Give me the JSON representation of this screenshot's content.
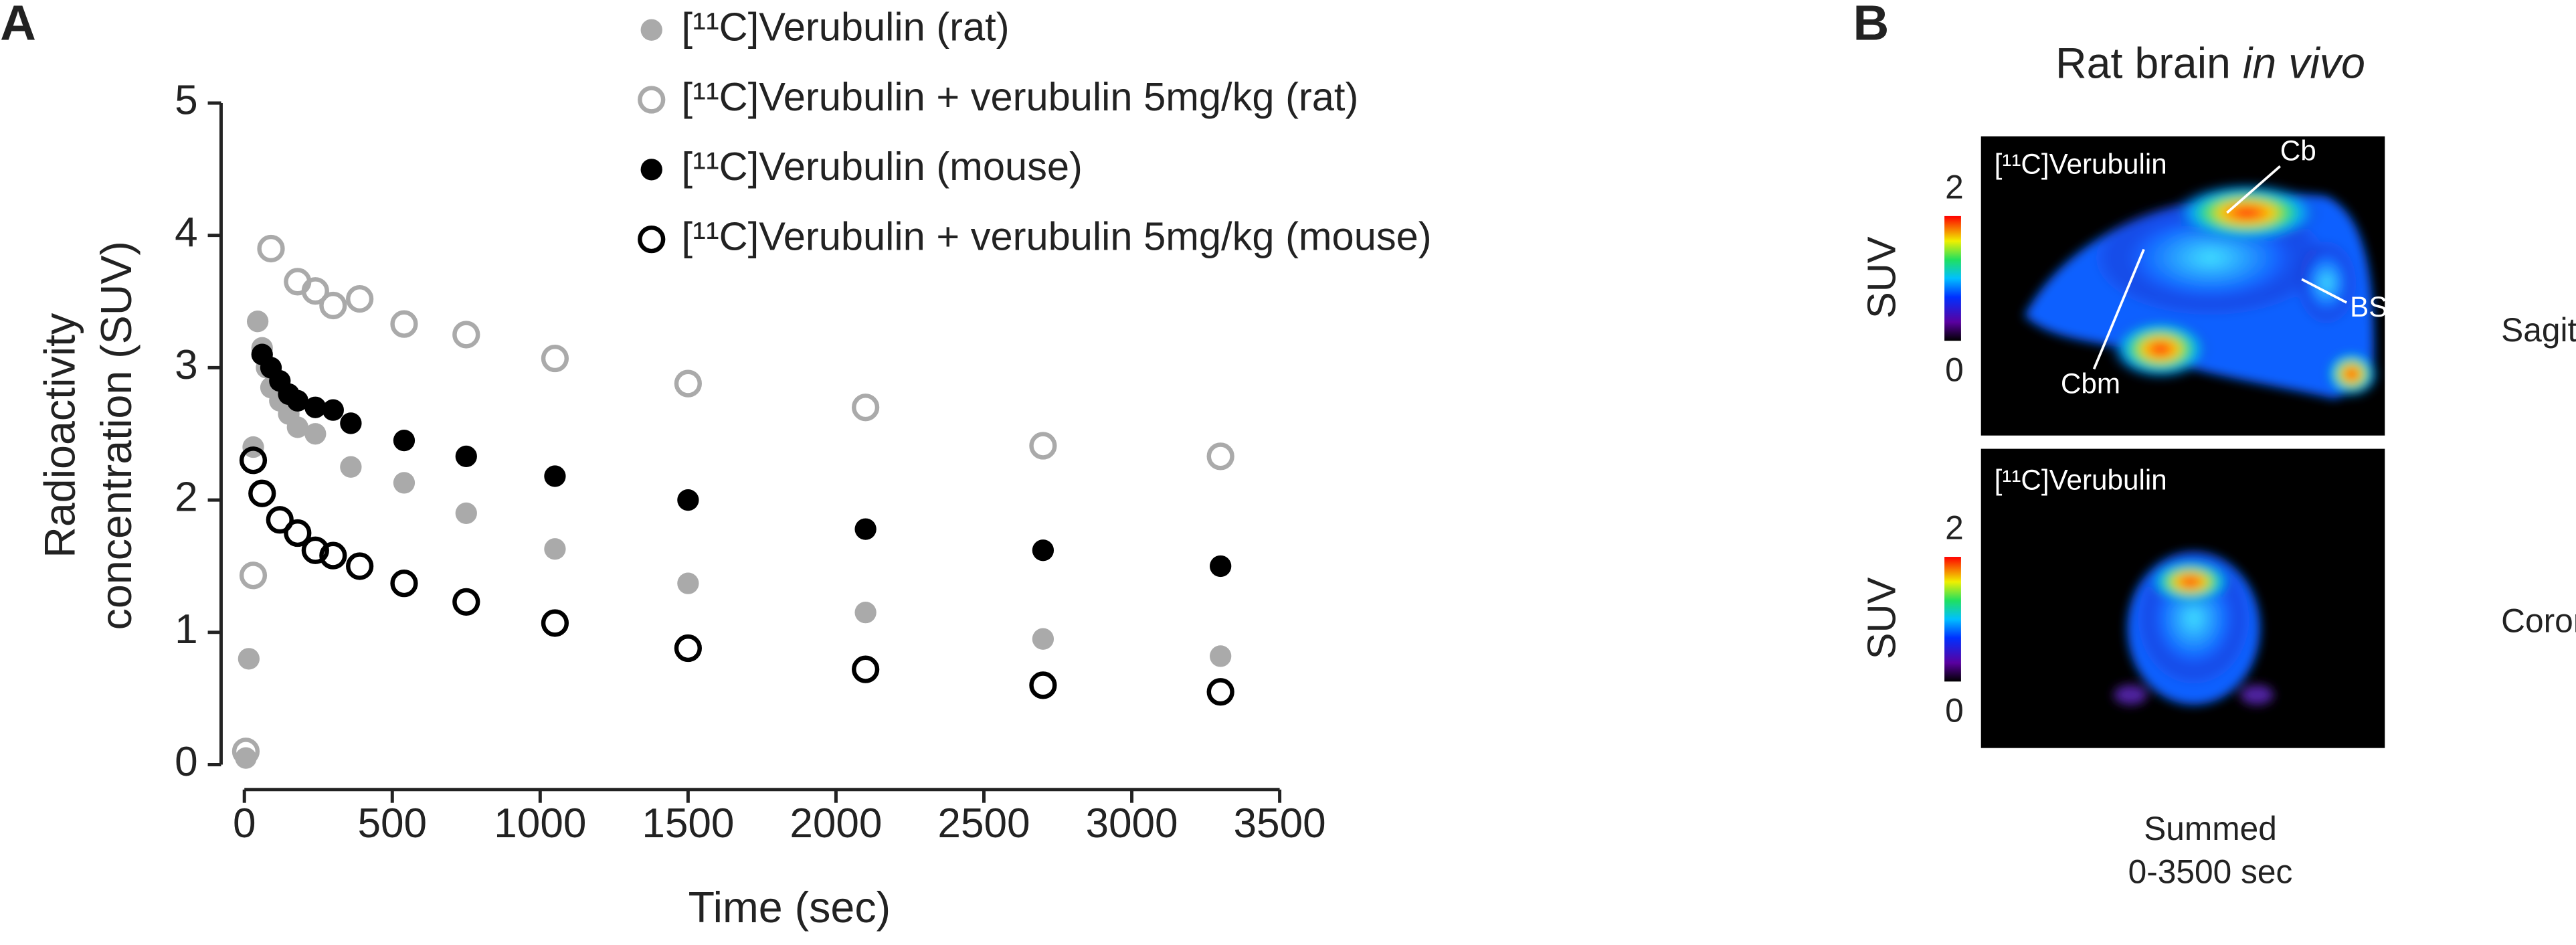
{
  "chart_data": {
    "type": "scatter",
    "panel_label": "A",
    "xlabel": "Time (sec)",
    "ylabel": [
      "Radioactivity",
      "concentration (SUV)"
    ],
    "xlim": [
      0,
      3500
    ],
    "xticks": [
      0,
      500,
      1000,
      1500,
      2000,
      2500,
      3000,
      3500
    ],
    "ylim": [
      0,
      5
    ],
    "yticks": [
      0,
      1,
      2,
      3,
      4,
      5
    ],
    "legend": "top-right",
    "series": [
      {
        "name": "[¹¹C]Verubulin (rat)",
        "color": "#aaaaaa",
        "marker": "filled",
        "x": [
          5,
          15,
          30,
          45,
          60,
          75,
          90,
          120,
          150,
          180,
          240,
          360,
          540,
          750,
          1050,
          1500,
          2100,
          2700,
          3300
        ],
        "values": [
          0.05,
          0.8,
          2.4,
          3.35,
          3.15,
          3.0,
          2.85,
          2.75,
          2.65,
          2.55,
          2.5,
          2.25,
          2.13,
          1.9,
          1.63,
          1.37,
          1.15,
          0.95,
          0.82
        ]
      },
      {
        "name": "[¹¹C]Verubulin + verubulin 5mg/kg (rat)",
        "color": "#aaaaaa",
        "marker": "open",
        "x": [
          5,
          30,
          90,
          180,
          240,
          300,
          390,
          540,
          750,
          1050,
          1500,
          2100,
          2700,
          3300
        ],
        "values": [
          0.1,
          1.43,
          3.9,
          3.65,
          3.58,
          3.47,
          3.52,
          3.33,
          3.25,
          3.07,
          2.88,
          2.7,
          2.41,
          2.33
        ]
      },
      {
        "name": "[¹¹C]Verubulin (mouse)",
        "color": "#000000",
        "marker": "filled",
        "x": [
          60,
          90,
          120,
          150,
          180,
          240,
          300,
          360,
          540,
          750,
          1050,
          1500,
          2100,
          2700,
          3300
        ],
        "values": [
          3.1,
          3.0,
          2.9,
          2.8,
          2.75,
          2.7,
          2.68,
          2.58,
          2.45,
          2.33,
          2.18,
          2.0,
          1.78,
          1.62,
          1.5
        ]
      },
      {
        "name": "[¹¹C]Verubulin + verubulin 5mg/kg (mouse)",
        "color": "#000000",
        "marker": "open",
        "x": [
          30,
          60,
          120,
          180,
          240,
          300,
          390,
          540,
          750,
          1050,
          1500,
          2100,
          2700,
          3300
        ],
        "values": [
          2.3,
          2.05,
          1.85,
          1.75,
          1.62,
          1.58,
          1.5,
          1.37,
          1.23,
          1.07,
          0.88,
          0.72,
          0.6,
          0.55
        ]
      }
    ]
  },
  "panel_b": {
    "panel_label": "B",
    "title": "Rat brain",
    "title_italic": "in vivo",
    "sagittal": {
      "tracer": "[¹¹C]Verubulin",
      "colorbar_label": "SUV",
      "colorbar_max": "2",
      "colorbar_min": "0",
      "regions": [
        "Cb",
        "BS",
        "Cbm"
      ],
      "view": "Sagittal"
    },
    "coronal": {
      "tracer": "[¹¹C]Verubulin",
      "colorbar_label": "SUV",
      "colorbar_max": "2",
      "colorbar_min": "0",
      "view": "Coronal"
    },
    "caption": [
      "Summed",
      "0-3500 sec"
    ]
  }
}
